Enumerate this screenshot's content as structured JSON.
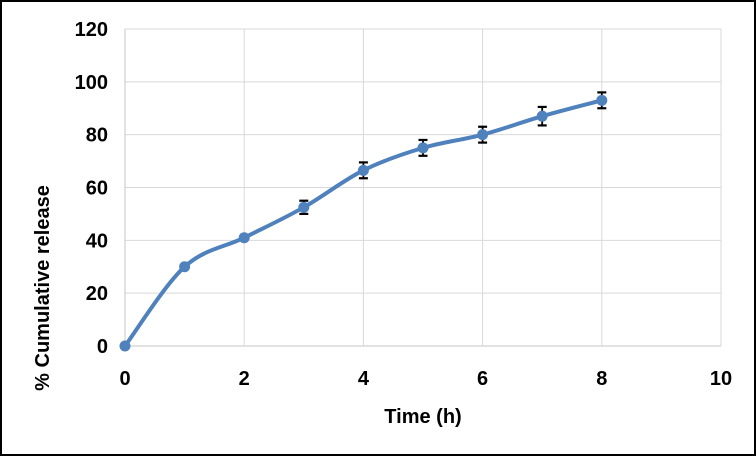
{
  "window": {
    "background_color": "#FFFFFF",
    "border_color": "#000000"
  },
  "chart_data": {
    "type": "line",
    "title": "",
    "xlabel": "Time (h)",
    "ylabel": "% Cumulative release",
    "x": [
      0,
      1,
      2,
      3,
      4,
      5,
      6,
      7,
      8
    ],
    "series": [
      {
        "name": "% cumulative release",
        "values": [
          0,
          30,
          41,
          52.5,
          66.5,
          75,
          80,
          87,
          93
        ],
        "errors": [
          0,
          0,
          0,
          2.5,
          3,
          3,
          3,
          3.5,
          3
        ],
        "color": "#4F81BD",
        "marker": "circle",
        "smooth": true
      }
    ],
    "xlim": [
      0,
      10
    ],
    "ylim": [
      0,
      120
    ],
    "xticks": [
      0,
      2,
      4,
      6,
      8,
      10
    ],
    "yticks": [
      0,
      20,
      40,
      60,
      80,
      100,
      120
    ],
    "grid": true,
    "gridline_color": "#D9D9D9",
    "axis_line_color": "#C6C6C6",
    "error_bar_color": "#000000",
    "tick_label_color": "#000000",
    "legend_position": "none"
  }
}
